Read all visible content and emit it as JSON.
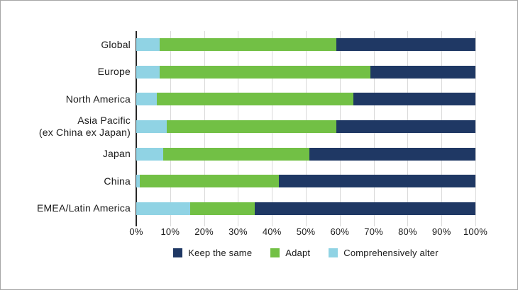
{
  "chart_data": {
    "type": "bar",
    "orientation": "horizontal",
    "stacked": true,
    "title": "",
    "xlabel": "",
    "ylabel": "",
    "xlim": [
      0,
      100
    ],
    "grid": "vertical",
    "legend_position": "bottom",
    "x_ticks": [
      "0%",
      "10%",
      "20%",
      "30%",
      "40%",
      "50%",
      "60%",
      "70%",
      "80%",
      "90%",
      "100%"
    ],
    "categories": [
      "Global",
      "Europe",
      "North America",
      "Asia Pacific\n(ex China ex Japan)",
      "Japan",
      "China",
      "EMEA/Latin America"
    ],
    "series": [
      {
        "name": "Keep the same",
        "color": "#1f3864",
        "values": [
          41,
          31,
          36,
          41,
          49,
          58,
          65
        ]
      },
      {
        "name": "Adapt",
        "color": "#72c045",
        "values": [
          52,
          62,
          58,
          50,
          43,
          41,
          19
        ]
      },
      {
        "name": "Comprehensively alter",
        "color": "#90d3e4",
        "values": [
          7,
          7,
          6,
          9,
          8,
          1,
          16
        ]
      }
    ],
    "stack_order_left_to_right": [
      "Comprehensively alter",
      "Adapt",
      "Keep the same"
    ]
  },
  "colors": {
    "axis": "#262626",
    "gridline": "#d9d9d9",
    "border": "#a6a6a6",
    "text": "#1a1a1a"
  }
}
